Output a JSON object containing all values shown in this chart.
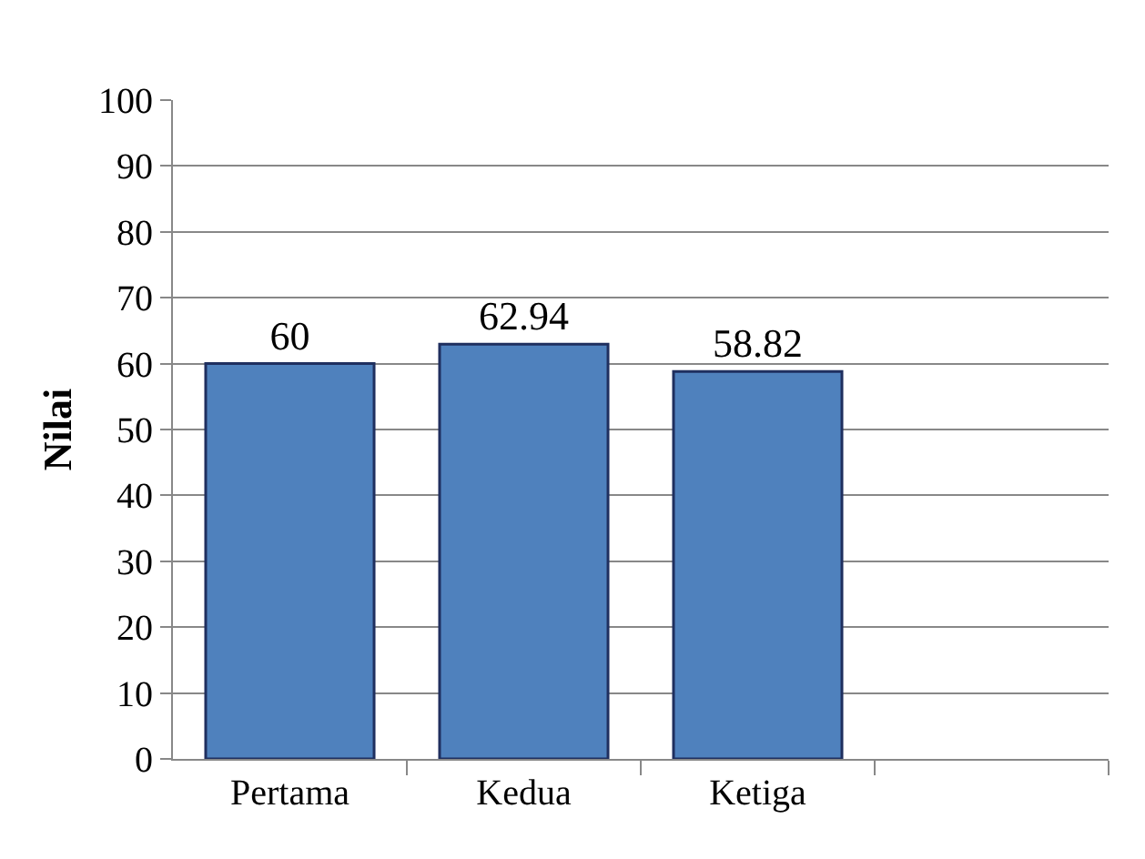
{
  "chart_data": {
    "type": "bar",
    "ylabel": "Nilai",
    "categories": [
      "Pertama",
      "Kedua",
      "Ketiga",
      null
    ],
    "series": [
      {
        "color": "#4f81bd",
        "values": [
          60,
          62.94,
          58.82,
          null
        ]
      }
    ],
    "ylim": [
      0,
      100
    ],
    "yticks": [
      0,
      10,
      20,
      30,
      40,
      50,
      60,
      70,
      80,
      90,
      100
    ],
    "grid": "y",
    "data_labels": true,
    "legend": false
  }
}
